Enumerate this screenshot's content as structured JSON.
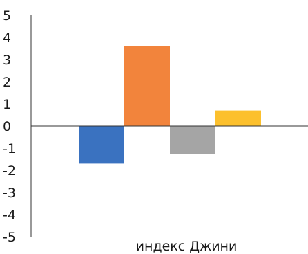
{
  "chart_data": {
    "type": "bar",
    "categories": [
      "индекс Джини"
    ],
    "xlabel": "индекс Джини",
    "ylim": [
      -5,
      5
    ],
    "yticks": [
      5,
      4,
      3,
      2,
      1,
      0,
      -1,
      -2,
      -3,
      -4,
      -5
    ],
    "grid": false,
    "legend": "none",
    "series": [
      {
        "values": [
          -1.7
        ],
        "color": "#3a72c0"
      },
      {
        "values": [
          3.6
        ],
        "color": "#f2843c"
      },
      {
        "values": [
          -1.25
        ],
        "color": "#a5a5a5"
      },
      {
        "values": [
          0.7
        ],
        "color": "#fcc02d"
      }
    ]
  }
}
